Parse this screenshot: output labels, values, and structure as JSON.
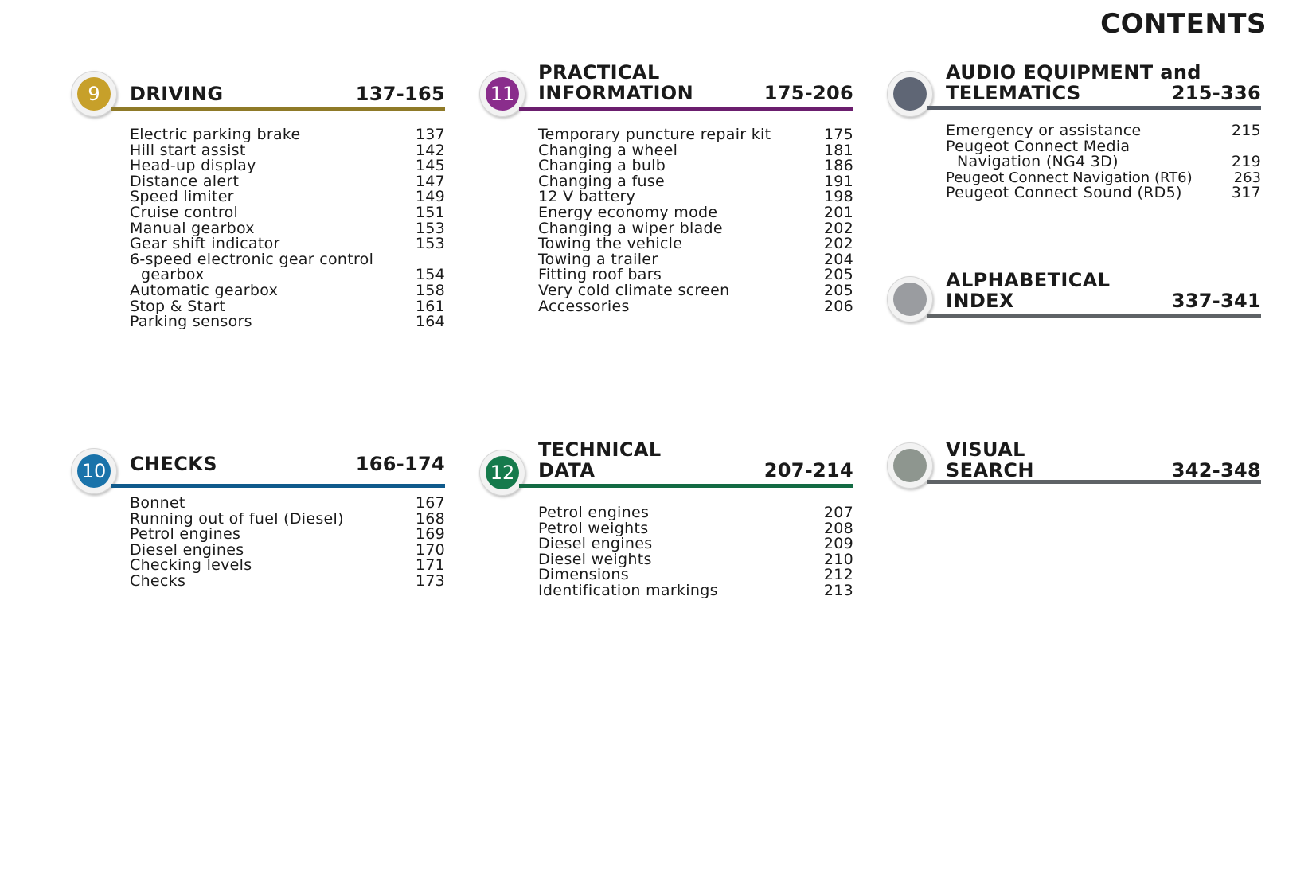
{
  "page_title": "CONTENTS",
  "sections": {
    "driving": {
      "number": "9",
      "title": "DRIVING",
      "range": "137-165",
      "color": "#8f7a28",
      "disc": "#c7a02a",
      "items": [
        {
          "label": "Electric parking brake",
          "page": "137"
        },
        {
          "label": "Hill start assist",
          "page": "142"
        },
        {
          "label": "Head-up display",
          "page": "145"
        },
        {
          "label": "Distance alert",
          "page": "147"
        },
        {
          "label": "Speed limiter",
          "page": "149"
        },
        {
          "label": "Cruise control",
          "page": "151"
        },
        {
          "label": "Manual gearbox",
          "page": "153"
        },
        {
          "label": "Gear shift indicator",
          "page": "153"
        },
        {
          "label": "6-speed electronic gear control",
          "page": ""
        },
        {
          "label": "gearbox",
          "page": "154"
        },
        {
          "label": "Automatic gearbox",
          "page": "158"
        },
        {
          "label": "Stop & Start",
          "page": "161"
        },
        {
          "label": "Parking sensors",
          "page": "164"
        }
      ]
    },
    "practical": {
      "number": "11",
      "title_line1": "PRACTICAL",
      "title_line2": "INFORMATION",
      "range": "175-206",
      "color": "#6b1e6e",
      "disc": "#8a2d8c",
      "items": [
        {
          "label": "Temporary puncture repair kit",
          "page": "175"
        },
        {
          "label": "Changing a wheel",
          "page": "181"
        },
        {
          "label": "Changing a bulb",
          "page": "186"
        },
        {
          "label": "Changing a fuse",
          "page": "191"
        },
        {
          "label": "12 V battery",
          "page": "198"
        },
        {
          "label": "Energy economy mode",
          "page": "201"
        },
        {
          "label": "Changing a wiper blade",
          "page": "202"
        },
        {
          "label": "Towing the vehicle",
          "page": "202"
        },
        {
          "label": "Towing a trailer",
          "page": "204"
        },
        {
          "label": "Fitting roof bars",
          "page": "205"
        },
        {
          "label": "Very cold climate screen",
          "page": "205"
        },
        {
          "label": "Accessories",
          "page": "206"
        }
      ]
    },
    "audio": {
      "title_line1": "AUDIO EQUIPMENT and",
      "title_line2": "TELEMATICS",
      "range": "215-336",
      "color": "#545b66",
      "disc": "#5f6675",
      "items": [
        {
          "label": "Emergency or assistance",
          "page": "215"
        },
        {
          "label": "Peugeot Connect Media",
          "page": ""
        },
        {
          "label": "Navigation (NG4 3D)",
          "page": "219"
        },
        {
          "label": "Peugeot Connect Navigation (RT6)",
          "page": "263"
        },
        {
          "label": "Peugeot Connect Sound (RD5)",
          "page": "317"
        }
      ]
    },
    "index": {
      "title_line1": "ALPHABETICAL",
      "title_line2": "INDEX",
      "range": "337-341",
      "color": "#5f6366",
      "disc": "#9a9ca0"
    },
    "checks": {
      "number": "10",
      "title": "CHECKS",
      "range": "166-174",
      "color": "#0f5a8c",
      "disc": "#1a73aa",
      "items": [
        {
          "label": "Bonnet",
          "page": "167"
        },
        {
          "label": "Running out of fuel (Diesel)",
          "page": "168"
        },
        {
          "label": "Petrol engines",
          "page": "169"
        },
        {
          "label": "Diesel engines",
          "page": "170"
        },
        {
          "label": "Checking levels",
          "page": "171"
        },
        {
          "label": "Checks",
          "page": "173"
        }
      ]
    },
    "technical": {
      "number": "12",
      "title_line1": "TECHNICAL",
      "title_line2": "DATA",
      "range": "207-214",
      "color": "#136b43",
      "disc": "#157a4c",
      "items": [
        {
          "label": "Petrol engines",
          "page": "207"
        },
        {
          "label": "Petrol weights",
          "page": "208"
        },
        {
          "label": "Diesel engines",
          "page": "209"
        },
        {
          "label": "Diesel weights",
          "page": "210"
        },
        {
          "label": "Dimensions",
          "page": "212"
        },
        {
          "label": "Identification markings",
          "page": "213"
        }
      ]
    },
    "visual": {
      "title_line1": "VISUAL",
      "title_line2": "SEARCH",
      "range": "342-348",
      "color": "#5f6366",
      "disc": "#8e968f"
    }
  }
}
